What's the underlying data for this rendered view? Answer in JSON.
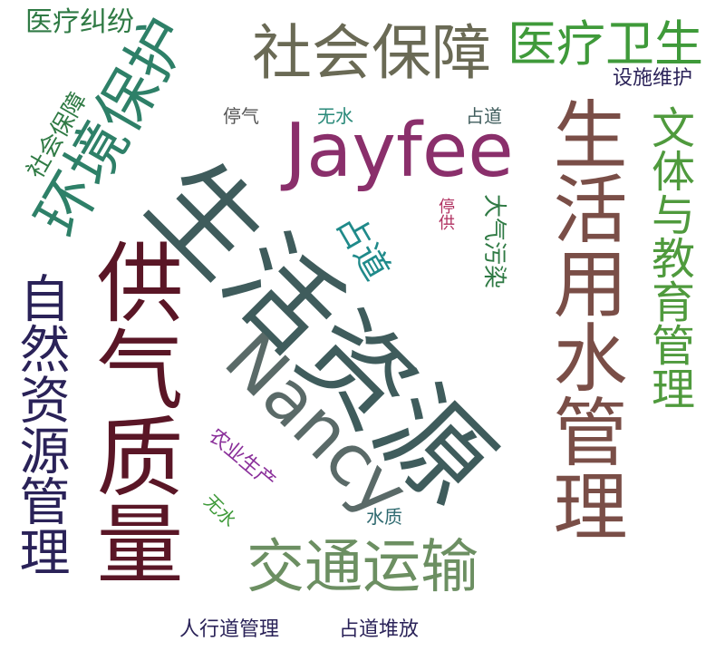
{
  "cloud": {
    "words": [
      {
        "id": "w1",
        "text": "生活资源",
        "color": "#3f5c5c"
      },
      {
        "id": "w2",
        "text": "Jayfee",
        "color": "#8a2f6b"
      },
      {
        "id": "w3",
        "text": "Nancy",
        "color": "#5a6a68"
      },
      {
        "id": "w4",
        "text": "供气质量",
        "color": "#5a1626"
      },
      {
        "id": "w5",
        "text": "生活用水管理",
        "color": "#7a4e47"
      },
      {
        "id": "w6",
        "text": "环境保护",
        "color": "#2e8068"
      },
      {
        "id": "w7",
        "text": "社会保障",
        "color": "#6a6a55"
      },
      {
        "id": "w8",
        "text": "医疗卫生",
        "color": "#3f9a3a"
      },
      {
        "id": "w9",
        "text": "文体与教育管理",
        "color": "#4f9a3d"
      },
      {
        "id": "w10",
        "text": "自然资源管理",
        "color": "#2a2258"
      },
      {
        "id": "w11",
        "text": "交通运输",
        "color": "#6c8f62"
      },
      {
        "id": "w12",
        "text": "医疗纠纷",
        "color": "#2f7a44"
      },
      {
        "id": "w13",
        "text": "社会保障",
        "color": "#2f7a44"
      },
      {
        "id": "w14",
        "text": "设施维护",
        "color": "#2a2258"
      },
      {
        "id": "w15",
        "text": "停气",
        "color": "#555555"
      },
      {
        "id": "w16",
        "text": "无水",
        "color": "#2a8a7a"
      },
      {
        "id": "w17",
        "text": "占道",
        "color": "#3f5c5c"
      },
      {
        "id": "w18",
        "text": "占道",
        "color": "#1f8a8a"
      },
      {
        "id": "w19",
        "text": "停供",
        "color": "#b03060"
      },
      {
        "id": "w20",
        "text": "大气污染",
        "color": "#2f7a44"
      },
      {
        "id": "w21",
        "text": "农业生产",
        "color": "#8a2f9a"
      },
      {
        "id": "w22",
        "text": "无水",
        "color": "#3f9a3a"
      },
      {
        "id": "w23",
        "text": "水质",
        "color": "#2f6a70"
      },
      {
        "id": "w24",
        "text": "人行道管理",
        "color": "#2a2258"
      },
      {
        "id": "w25",
        "text": "占道堆放",
        "color": "#2a2258"
      }
    ]
  }
}
